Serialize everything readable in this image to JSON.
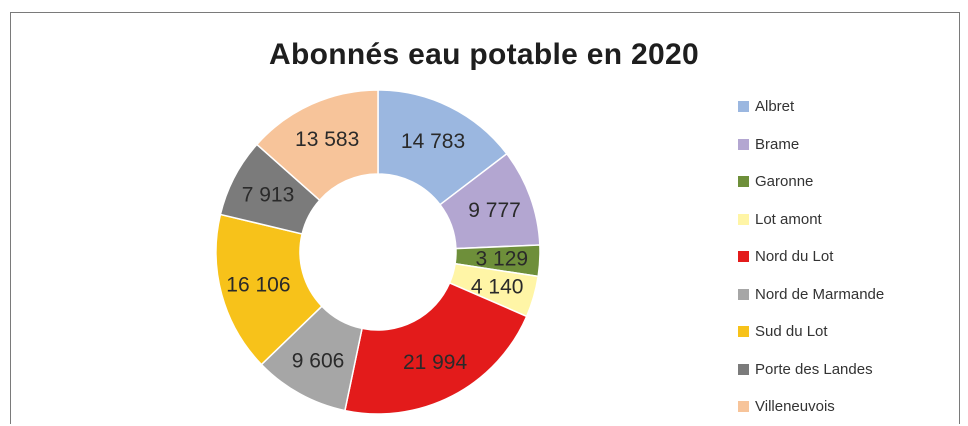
{
  "chart_data": {
    "type": "pie",
    "donut": true,
    "title": "Abonnés eau potable en 2020",
    "legend_position": "right",
    "slices": [
      {
        "name": "Albret",
        "value": 14783,
        "label": "14 783",
        "color": "#9bb7e0"
      },
      {
        "name": "Brame",
        "value": 9777,
        "label": "9 777",
        "color": "#b3a6d1"
      },
      {
        "name": "Garonne",
        "value": 3129,
        "label": "3 129",
        "color": "#6e8f3a"
      },
      {
        "name": "Lot amont",
        "value": 4140,
        "label": "4 140",
        "color": "#fff5a6"
      },
      {
        "name": "Nord du Lot",
        "value": 21994,
        "label": "21 994",
        "color": "#e31b1b"
      },
      {
        "name": "Nord de Marmande",
        "value": 9606,
        "label": "9 606",
        "color": "#a6a6a6"
      },
      {
        "name": "Sud du Lot",
        "value": 16106,
        "label": "16 106",
        "color": "#f7c21a"
      },
      {
        "name": "Porte des Landes",
        "value": 7913,
        "label": "7 913",
        "color": "#7b7b7b"
      },
      {
        "name": "Villeneuvois",
        "value": 13583,
        "label": "13 583",
        "color": "#f7c49a"
      }
    ]
  }
}
